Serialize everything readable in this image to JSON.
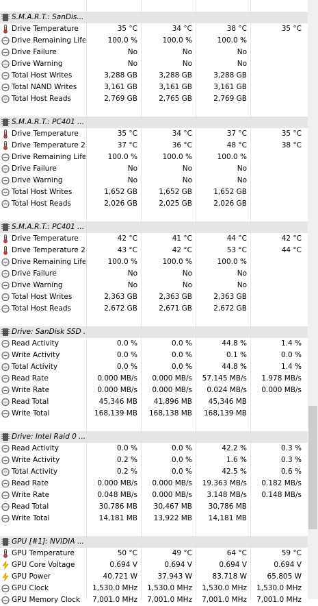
{
  "groups": [
    {
      "title": "S.M.A.R.T.: SanDis...",
      "rows": [
        {
          "icon": "thermometer",
          "label": "Drive Temperature",
          "v": [
            "35 °C",
            "34 °C",
            "38 °C",
            "35 °C"
          ]
        },
        {
          "icon": "clock",
          "label": "Drive Remaining Life",
          "v": [
            "100.0 %",
            "100.0 %",
            "100.0 %",
            ""
          ]
        },
        {
          "icon": "clock",
          "label": "Drive Failure",
          "v": [
            "No",
            "No",
            "No",
            ""
          ]
        },
        {
          "icon": "clock",
          "label": "Drive Warning",
          "v": [
            "No",
            "No",
            "No",
            ""
          ]
        },
        {
          "icon": "clock",
          "label": "Total Host Writes",
          "v": [
            "3,288 GB",
            "3,288 GB",
            "3,288 GB",
            ""
          ]
        },
        {
          "icon": "clock",
          "label": "Total NAND Writes",
          "v": [
            "3,161 GB",
            "3,161 GB",
            "3,161 GB",
            ""
          ]
        },
        {
          "icon": "clock",
          "label": "Total Host Reads",
          "v": [
            "2,769 GB",
            "2,765 GB",
            "2,769 GB",
            ""
          ]
        }
      ]
    },
    {
      "title": "S.M.A.R.T.: PC401 ...",
      "rows": [
        {
          "icon": "thermometer",
          "label": "Drive Temperature",
          "v": [
            "35 °C",
            "34 °C",
            "37 °C",
            "35 °C"
          ]
        },
        {
          "icon": "thermometer",
          "label": "Drive Temperature 2",
          "v": [
            "37 °C",
            "36 °C",
            "48 °C",
            "38 °C"
          ]
        },
        {
          "icon": "clock",
          "label": "Drive Remaining Life",
          "v": [
            "100.0 %",
            "100.0 %",
            "100.0 %",
            ""
          ]
        },
        {
          "icon": "clock",
          "label": "Drive Failure",
          "v": [
            "No",
            "No",
            "No",
            ""
          ]
        },
        {
          "icon": "clock",
          "label": "Drive Warning",
          "v": [
            "No",
            "No",
            "No",
            ""
          ]
        },
        {
          "icon": "clock",
          "label": "Total Host Writes",
          "v": [
            "1,652 GB",
            "1,652 GB",
            "1,652 GB",
            ""
          ]
        },
        {
          "icon": "clock",
          "label": "Total Host Reads",
          "v": [
            "2,026 GB",
            "2,025 GB",
            "2,026 GB",
            ""
          ]
        }
      ]
    },
    {
      "title": "S.M.A.R.T.: PC401 ...",
      "rows": [
        {
          "icon": "thermometer",
          "label": "Drive Temperature",
          "v": [
            "42 °C",
            "41 °C",
            "44 °C",
            "42 °C"
          ]
        },
        {
          "icon": "thermometer",
          "label": "Drive Temperature 2",
          "v": [
            "43 °C",
            "42 °C",
            "53 °C",
            "44 °C"
          ]
        },
        {
          "icon": "clock",
          "label": "Drive Remaining Life",
          "v": [
            "100.0 %",
            "100.0 %",
            "100.0 %",
            ""
          ]
        },
        {
          "icon": "clock",
          "label": "Drive Failure",
          "v": [
            "No",
            "No",
            "No",
            ""
          ]
        },
        {
          "icon": "clock",
          "label": "Drive Warning",
          "v": [
            "No",
            "No",
            "No",
            ""
          ]
        },
        {
          "icon": "clock",
          "label": "Total Host Writes",
          "v": [
            "2,363 GB",
            "2,363 GB",
            "2,363 GB",
            ""
          ]
        },
        {
          "icon": "clock",
          "label": "Total Host Reads",
          "v": [
            "2,672 GB",
            "2,671 GB",
            "2,672 GB",
            ""
          ]
        }
      ]
    },
    {
      "title": "Drive: SanDisk SSD ...",
      "rows": [
        {
          "icon": "clock",
          "label": "Read Activity",
          "v": [
            "0.0 %",
            "0.0 %",
            "44.8 %",
            "1.4 %"
          ]
        },
        {
          "icon": "clock",
          "label": "Write Activity",
          "v": [
            "0.0 %",
            "0.0 %",
            "0.1 %",
            "0.0 %"
          ]
        },
        {
          "icon": "clock",
          "label": "Total Activity",
          "v": [
            "0.0 %",
            "0.0 %",
            "44.8 %",
            "1.4 %"
          ]
        },
        {
          "icon": "clock",
          "label": "Read Rate",
          "v": [
            "0.000 MB/s",
            "0.000 MB/s",
            "57.145 MB/s",
            "1.978 MB/s"
          ]
        },
        {
          "icon": "clock",
          "label": "Write Rate",
          "v": [
            "0.000 MB/s",
            "0.000 MB/s",
            "0.024 MB/s",
            "0.000 MB/s"
          ]
        },
        {
          "icon": "clock",
          "label": "Read Total",
          "v": [
            "45,346 MB",
            "41,896 MB",
            "45,346 MB",
            ""
          ]
        },
        {
          "icon": "clock",
          "label": "Write Total",
          "v": [
            "168,139 MB",
            "168,138 MB",
            "168,139 MB",
            ""
          ]
        }
      ]
    },
    {
      "title": "Drive: Intel Raid 0 ...",
      "rows": [
        {
          "icon": "clock",
          "label": "Read Activity",
          "v": [
            "0.0 %",
            "0.0 %",
            "42.2 %",
            "0.3 %"
          ]
        },
        {
          "icon": "clock",
          "label": "Write Activity",
          "v": [
            "0.2 %",
            "0.0 %",
            "1.6 %",
            "0.3 %"
          ]
        },
        {
          "icon": "clock",
          "label": "Total Activity",
          "v": [
            "0.2 %",
            "0.0 %",
            "42.5 %",
            "0.6 %"
          ]
        },
        {
          "icon": "clock",
          "label": "Read Rate",
          "v": [
            "0.000 MB/s",
            "0.000 MB/s",
            "19.363 MB/s",
            "0.182 MB/s"
          ]
        },
        {
          "icon": "clock",
          "label": "Write Rate",
          "v": [
            "0.048 MB/s",
            "0.000 MB/s",
            "3.148 MB/s",
            "0.148 MB/s"
          ]
        },
        {
          "icon": "clock",
          "label": "Read Total",
          "v": [
            "30,786 MB",
            "30,467 MB",
            "30,786 MB",
            ""
          ]
        },
        {
          "icon": "clock",
          "label": "Write Total",
          "v": [
            "14,181 MB",
            "13,922 MB",
            "14,181 MB",
            ""
          ]
        }
      ]
    },
    {
      "title": "GPU [#1]: NVIDIA ...",
      "rows": [
        {
          "icon": "thermometer",
          "label": "GPU Temperature",
          "v": [
            "50 °C",
            "49 °C",
            "64 °C",
            "59 °C"
          ]
        },
        {
          "icon": "lightning",
          "label": "GPU Core Voltage",
          "v": [
            "0.694 V",
            "0.694 V",
            "0.694 V",
            "0.694 V"
          ]
        },
        {
          "icon": "lightning",
          "label": "GPU Power",
          "v": [
            "40.721 W",
            "37.943 W",
            "83.718 W",
            "65.805 W"
          ]
        },
        {
          "icon": "clock",
          "label": "GPU Clock",
          "v": [
            "1,530.0 MHz",
            "1,530.0 MHz",
            "1,530.0 MHz",
            "1,530.0 MHz"
          ]
        },
        {
          "icon": "clock",
          "label": "GPU Memory Clock",
          "v": [
            "7,001.0 MHz",
            "7,001.0 MHz",
            "7,001.0 MHz",
            "7,001.0 MHz"
          ]
        }
      ]
    }
  ]
}
